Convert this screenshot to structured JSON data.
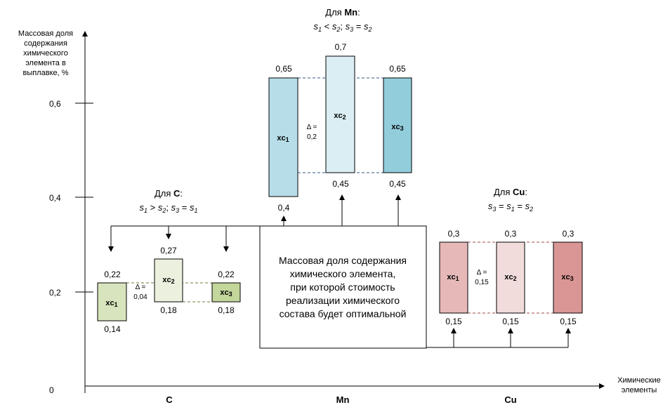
{
  "y_axis": {
    "label_lines": [
      "Массовая доля",
      "содержания",
      "химического",
      "элемента в",
      "выплавке, %"
    ],
    "ticks": [
      "0",
      "0,2",
      "0,4",
      "0,6"
    ]
  },
  "x_axis": {
    "label_lines": [
      "Химические",
      "элементы"
    ],
    "categories": [
      "C",
      "Mn",
      "Cu"
    ]
  },
  "center_box": {
    "lines": [
      "Массовая доля содержания",
      "химического  элемента,",
      "при которой стоимость",
      "реализации химического",
      "состава будет оптимальной"
    ]
  },
  "groups": {
    "C": {
      "title_prefix": "Для ",
      "element": "C",
      "title_suffix": ":",
      "relation": {
        "a": "s",
        "a_sub": "1",
        "op1": " > ",
        "b": "s",
        "b_sub": "2",
        "sep": "; ",
        "c": "s",
        "c_sub": "3",
        "op2": " = ",
        "d": "s",
        "d_sub": "1"
      },
      "delta_symbol": "Δ =",
      "delta_value": "0,04",
      "bars": [
        {
          "label": "xc",
          "sub": "1",
          "top": "0,22",
          "bottom": "0,14"
        },
        {
          "label": "xc",
          "sub": "2",
          "top": "0,27",
          "bottom": "0,18"
        },
        {
          "label": "xc",
          "sub": "3",
          "top": "0,22",
          "bottom": "0,18"
        }
      ]
    },
    "Mn": {
      "title_prefix": "Для ",
      "element": "Mn",
      "title_suffix": ":",
      "relation": {
        "a": "s",
        "a_sub": "1",
        "op1": " < ",
        "b": "s",
        "b_sub": "2",
        "sep": "; ",
        "c": "s",
        "c_sub": "3",
        "op2": " = ",
        "d": "s",
        "d_sub": "2"
      },
      "delta_symbol": "Δ =",
      "delta_value": "0,2",
      "bars": [
        {
          "label": "xc",
          "sub": "1",
          "top": "0,65",
          "bottom": "0,4"
        },
        {
          "label": "xc",
          "sub": "2",
          "top": "0,7",
          "bottom": "0,45"
        },
        {
          "label": "xc",
          "sub": "3",
          "top": "0,65",
          "bottom": "0,45"
        }
      ]
    },
    "Cu": {
      "title_prefix": "Для ",
      "element": "Cu",
      "title_suffix": ":",
      "relation": {
        "a": "s",
        "a_sub": "3",
        "op1": " = ",
        "b": "s",
        "b_sub": "1",
        "sep": " = ",
        "c": "s",
        "c_sub": "2",
        "op2": "",
        "d": "",
        "d_sub": ""
      },
      "delta_symbol": "Δ =",
      "delta_value": "0,15",
      "bars": [
        {
          "label": "xc",
          "sub": "1",
          "top": "0,3",
          "bottom": "0,15"
        },
        {
          "label": "xc",
          "sub": "2",
          "top": "0,3",
          "bottom": "0,15"
        },
        {
          "label": "xc",
          "sub": "3",
          "top": "0,3",
          "bottom": "0,15"
        }
      ]
    }
  },
  "colors": {
    "c_bar1": "#d7e4bd",
    "c_bar2": "#ebf1de",
    "c_bar3": "#c3d69b",
    "mn_bar1": "#b7dee8",
    "mn_bar2": "#dbeef3",
    "mn_bar3": "#92cddc",
    "cu_bar1": "#e6b9b8",
    "cu_bar2": "#f2dcdb",
    "cu_bar3": "#d99694"
  }
}
